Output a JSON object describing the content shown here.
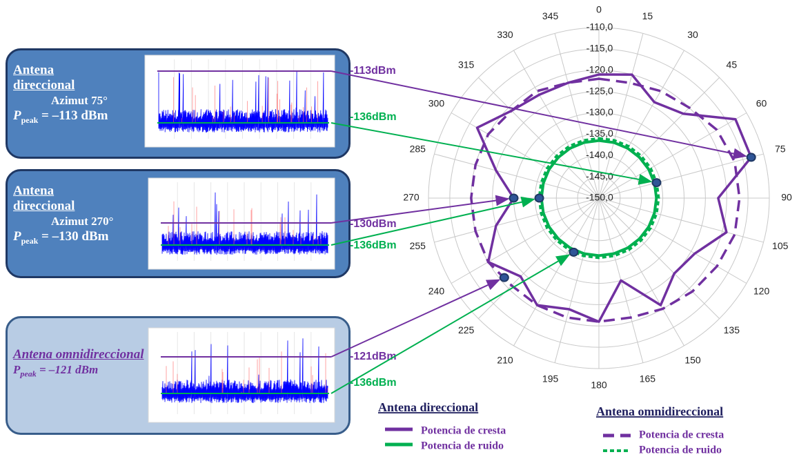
{
  "chart_data": {
    "type": "radar",
    "categories": [
      "0",
      "15",
      "30",
      "45",
      "60",
      "75",
      "90",
      "105",
      "120",
      "135",
      "150",
      "165",
      "180",
      "195",
      "210",
      "225",
      "240",
      "255",
      "270",
      "285",
      "300",
      "315",
      "330",
      "345"
    ],
    "rlim": [
      -150,
      -110
    ],
    "rticks": [
      {
        "value": -150,
        "label": "-150,0"
      },
      {
        "value": -145,
        "label": "-145,0"
      },
      {
        "value": -140,
        "label": "-140,0"
      },
      {
        "value": -135,
        "label": "-135,0"
      },
      {
        "value": -130,
        "label": "-130,0"
      },
      {
        "value": -125,
        "label": "-125,0"
      },
      {
        "value": -120,
        "label": "-120,0"
      },
      {
        "value": -115,
        "label": "-115,0"
      },
      {
        "value": -110,
        "label": "-110,0"
      }
    ],
    "grid": true,
    "series": [
      {
        "name": "Potencia de cresta",
        "legend_group": "Antena direccional",
        "color": "#7030a0",
        "dashed": false,
        "values": [
          -121,
          -120,
          -124,
          -122,
          -113,
          -113,
          -122,
          -119,
          -124,
          -125,
          -121,
          -130,
          -121,
          -123,
          -121,
          -124,
          -120,
          -125,
          -130,
          -125,
          -117,
          -121,
          -122,
          -122
        ]
      },
      {
        "name": "Potencia de ruido",
        "legend_group": "Antena direccional",
        "color": "#00b050",
        "dashed": false,
        "values": [
          -136.5,
          -136.5,
          -136.5,
          -136.5,
          -136.5,
          -136.5,
          -136.5,
          -136.5,
          -136.5,
          -136.5,
          -136.5,
          -136.5,
          -136.5,
          -136.5,
          -136.5,
          -136.5,
          -136.5,
          -136.5,
          -136.5,
          -136.5,
          -136.5,
          -136.5,
          -136.5,
          -136.5
        ]
      },
      {
        "name": "Potencia de cresta",
        "legend_group": "Antena omnidireccional",
        "color": "#7030a0",
        "dashed": true,
        "values": [
          -122,
          -122,
          -121,
          -120,
          -118,
          -117,
          -117,
          -117,
          -118,
          -119,
          -120,
          -121,
          -121,
          -121,
          -121,
          -121,
          -120,
          -120,
          -120,
          -120,
          -120,
          -121,
          -121,
          -122
        ]
      },
      {
        "name": "Potencia de ruido",
        "legend_group": "Antena omnidireccional",
        "color": "#00b050",
        "dashed": true,
        "values": [
          -136,
          -136,
          -136,
          -136,
          -136,
          -136,
          -136,
          -136,
          -136,
          -136,
          -136,
          -136,
          -136,
          -136,
          -136,
          -136,
          -136,
          -136,
          -136,
          -136,
          -136,
          -136,
          -136,
          -136
        ]
      }
    ],
    "markers": {
      "azimuths": [
        75,
        75,
        270,
        270,
        230,
        205
      ],
      "values": [
        -113,
        -136,
        -130,
        -136,
        -121,
        -136
      ],
      "value_labels": [
        "-113dBm",
        "-136dBm",
        "-130dBm",
        "-136dBm",
        "-121dBm",
        "-136dBm"
      ],
      "colors": [
        "#7030a0",
        "#00b050",
        "#7030a0",
        "#00b050",
        "#7030a0",
        "#00b050"
      ]
    }
  },
  "panels": [
    {
      "title": "Antena direccional",
      "azimuth": "Azimut 75°",
      "peak_symbol": "P",
      "peak_subscript": "peak",
      "peak_value": " = –113 dBm"
    },
    {
      "title": "Antena direccional",
      "azimuth": "Azimut 270°",
      "peak_symbol": "P",
      "peak_subscript": "peak",
      "peak_value": " = –130 dBm"
    },
    {
      "title": "Antena omnidireccional",
      "peak_symbol": "P",
      "peak_subscript": "peak",
      "peak_value": " = –121 dBm"
    }
  ]
}
